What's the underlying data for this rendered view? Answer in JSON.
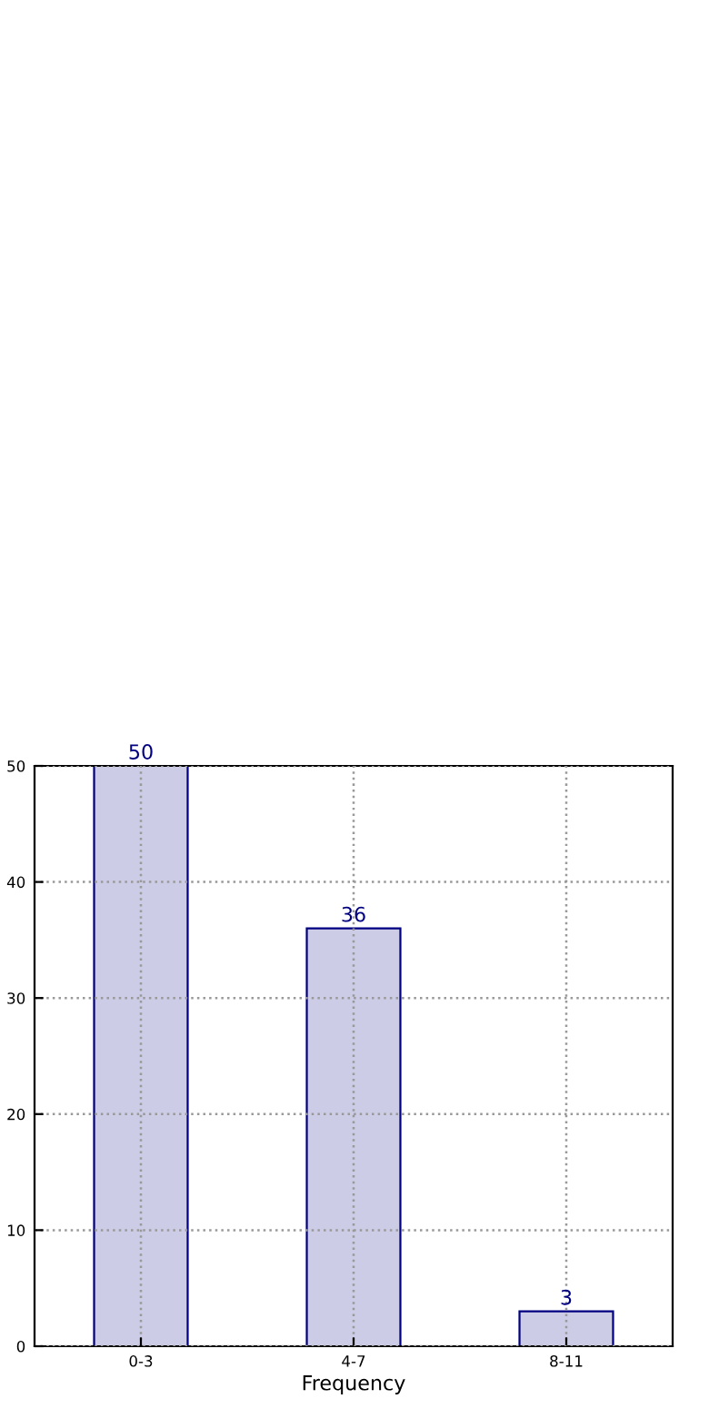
{
  "chart_data": {
    "type": "bar",
    "xlabel": "Frequency",
    "categories": [
      "0-3",
      "4-7",
      "8-11"
    ],
    "values": [
      50,
      36,
      3
    ],
    "color": "#cccce6",
    "ylim": [
      0,
      50
    ],
    "yticks": [
      0,
      10,
      20,
      30,
      40,
      50
    ],
    "grid": true,
    "data_labels": true
  }
}
